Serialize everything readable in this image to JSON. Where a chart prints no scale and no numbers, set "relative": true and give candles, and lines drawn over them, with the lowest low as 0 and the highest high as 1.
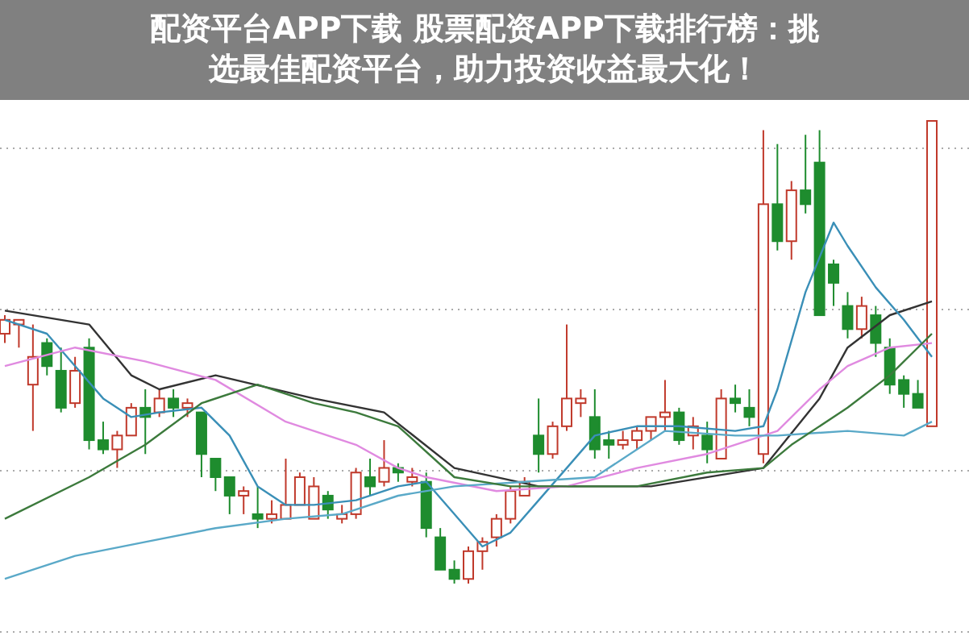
{
  "chart_data": {
    "type": "candlestick",
    "title": "配资平台APP下载 股票配资APP下载排行榜：挑选最佳配资平台，助力投资收益最大化！",
    "relative": true,
    "grid": "y",
    "categories": [
      null,
      null,
      null,
      null,
      null,
      null,
      null,
      null,
      null,
      null,
      null,
      null,
      null,
      null,
      null,
      null,
      null,
      null,
      null,
      null,
      null,
      null,
      null,
      null,
      null,
      null,
      null,
      null,
      null,
      null,
      null,
      null,
      null,
      null,
      null,
      null,
      null,
      null,
      null,
      null,
      null,
      null,
      null,
      null,
      null,
      null,
      null,
      null,
      null,
      null,
      null,
      null,
      null,
      null,
      null,
      null,
      null,
      null,
      null,
      null,
      null,
      null,
      null,
      null,
      null,
      null,
      null
    ],
    "ohlc": [
      [
        0.54,
        0.58,
        0.52,
        0.57
      ],
      [
        0.56,
        0.57,
        0.51,
        0.57
      ],
      [
        0.43,
        0.56,
        0.33,
        0.49
      ],
      [
        0.52,
        0.53,
        0.45,
        0.47
      ],
      [
        0.46,
        0.51,
        0.37,
        0.38
      ],
      [
        0.39,
        0.49,
        0.38,
        0.46
      ],
      [
        0.51,
        0.53,
        0.29,
        0.31
      ],
      [
        0.31,
        0.35,
        0.28,
        0.29
      ],
      [
        0.29,
        0.33,
        0.25,
        0.32
      ],
      [
        0.32,
        0.39,
        0.32,
        0.38
      ],
      [
        0.38,
        0.42,
        0.28,
        0.36
      ],
      [
        0.37,
        0.42,
        0.36,
        0.4
      ],
      [
        0.4,
        0.42,
        0.36,
        0.38
      ],
      [
        0.38,
        0.4,
        0.36,
        0.39
      ],
      [
        0.37,
        0.37,
        0.23,
        0.28
      ],
      [
        0.27,
        0.27,
        0.2,
        0.23
      ],
      [
        0.23,
        0.23,
        0.15,
        0.19
      ],
      [
        0.19,
        0.21,
        0.15,
        0.2
      ],
      [
        0.15,
        0.21,
        0.12,
        0.14
      ],
      [
        0.14,
        0.18,
        0.13,
        0.15
      ],
      [
        0.14,
        0.27,
        0.14,
        0.17
      ],
      [
        0.17,
        0.24,
        0.17,
        0.23
      ],
      [
        0.14,
        0.23,
        0.14,
        0.21
      ],
      [
        0.19,
        0.2,
        0.14,
        0.16
      ],
      [
        0.14,
        0.17,
        0.13,
        0.15
      ],
      [
        0.15,
        0.25,
        0.14,
        0.24
      ],
      [
        0.23,
        0.27,
        0.19,
        0.21
      ],
      [
        0.22,
        0.31,
        0.21,
        0.25
      ],
      [
        0.25,
        0.26,
        0.22,
        0.24
      ],
      [
        0.22,
        0.25,
        0.21,
        0.23
      ],
      [
        0.22,
        0.24,
        0.1,
        0.12
      ],
      [
        0.1,
        0.12,
        0.03,
        0.03
      ],
      [
        0.03,
        0.05,
        0,
        0.01
      ],
      [
        0.01,
        0.08,
        0,
        0.07
      ],
      [
        0.07,
        0.1,
        0.03,
        0.09
      ],
      [
        0.1,
        0.15,
        0.08,
        0.14
      ],
      [
        0.14,
        0.21,
        0.13,
        0.2
      ],
      [
        0.19,
        0.23,
        0.19,
        0.22
      ],
      [
        0.32,
        0.4,
        0.24,
        0.28
      ],
      [
        0.28,
        0.35,
        0.27,
        0.34
      ],
      [
        0.34,
        0.56,
        0.33,
        0.4
      ],
      [
        0.39,
        0.42,
        0.36,
        0.4
      ],
      [
        0.36,
        0.42,
        0.27,
        0.29
      ],
      [
        0.31,
        0.33,
        0.27,
        0.3
      ],
      [
        0.3,
        0.33,
        0.29,
        0.31
      ],
      [
        0.31,
        0.34,
        0.29,
        0.33
      ],
      [
        0.33,
        0.36,
        0.31,
        0.36
      ],
      [
        0.36,
        0.44,
        0.33,
        0.37
      ],
      [
        0.37,
        0.38,
        0.3,
        0.31
      ],
      [
        0.32,
        0.36,
        0.29,
        0.34
      ],
      [
        0.32,
        0.35,
        0.26,
        0.29
      ],
      [
        0.27,
        0.42,
        0.27,
        0.4
      ],
      [
        0.4,
        0.43,
        0.37,
        0.39
      ],
      [
        0.38,
        0.42,
        0.34,
        0.36
      ],
      [
        0.28,
        0.98,
        0.26,
        0.82
      ],
      [
        0.82,
        0.95,
        0.72,
        0.74
      ],
      [
        0.74,
        0.87,
        0.7,
        0.85
      ],
      [
        0.85,
        0.97,
        0.8,
        0.82
      ],
      [
        0.91,
        0.98,
        0.58,
        0.58
      ],
      [
        0.69,
        0.7,
        0.6,
        0.65
      ],
      [
        0.6,
        0.63,
        0.53,
        0.55
      ],
      [
        0.55,
        0.62,
        0.53,
        0.6
      ],
      [
        0.58,
        0.6,
        0.49,
        0.52
      ],
      [
        0.51,
        0.53,
        0.41,
        0.43
      ],
      [
        0.44,
        0.45,
        0.38,
        0.41
      ],
      [
        0.41,
        0.44,
        0.38,
        0.38
      ],
      [
        0.34,
        1,
        0.34,
        1
      ]
    ],
    "series": [
      {
        "type": "line",
        "color": "#333333",
        "values": [
          0.59,
          null,
          null,
          null,
          null,
          null,
          0.56,
          null,
          null,
          0.45,
          null,
          0.42,
          null,
          null,
          null,
          0.45,
          null,
          null,
          null,
          null,
          null,
          null,
          0.4,
          null,
          null,
          null,
          null,
          0.37,
          null,
          null,
          null,
          null,
          0.25,
          null,
          null,
          null,
          null,
          null,
          0.21,
          null,
          null,
          null,
          null,
          null,
          null,
          null,
          0.21,
          null,
          null,
          null,
          null,
          null,
          null,
          null,
          0.25,
          null,
          null,
          null,
          0.4,
          null,
          0.51,
          null,
          null,
          0.58,
          null,
          null,
          0.61
        ]
      },
      {
        "type": "line",
        "color": "#3a8fb7",
        "values": [
          0.57,
          null,
          null,
          0.54,
          null,
          0.47,
          null,
          0.4,
          null,
          0.36,
          null,
          0.37,
          null,
          null,
          0.38,
          null,
          0.32,
          null,
          0.21,
          null,
          0.17,
          null,
          0.17,
          null,
          null,
          0.18,
          null,
          null,
          0.21,
          null,
          0.22,
          null,
          0.15,
          null,
          0.08,
          null,
          0.11,
          null,
          0.18,
          null,
          0.25,
          null,
          0.32,
          null,
          null,
          0.34,
          null,
          null,
          0.34,
          null,
          null,
          null,
          0.33,
          null,
          0.34,
          0.42,
          null,
          0.63,
          null,
          0.78,
          0.73,
          null,
          0.64,
          null,
          0.57,
          null,
          0.49
        ]
      },
      {
        "type": "line",
        "color": "#e08ae0",
        "values": [
          0.47,
          null,
          null,
          null,
          null,
          0.51,
          null,
          null,
          null,
          null,
          0.48,
          null,
          null,
          null,
          null,
          0.44,
          null,
          null,
          null,
          null,
          0.35,
          null,
          null,
          null,
          null,
          0.3,
          null,
          null,
          0.25,
          null,
          0.23,
          null,
          null,
          null,
          null,
          0.2,
          null,
          null,
          null,
          null,
          0.21,
          null,
          null,
          null,
          null,
          0.25,
          null,
          null,
          null,
          null,
          0.28,
          null,
          null,
          null,
          0.32,
          0.33,
          null,
          null,
          0.42,
          null,
          0.47,
          null,
          null,
          0.51,
          null,
          null,
          0.52
        ]
      },
      {
        "type": "line",
        "color": "#5aa9c8",
        "values": [
          0.01,
          null,
          null,
          null,
          null,
          0.06,
          null,
          null,
          null,
          null,
          0.09,
          null,
          null,
          null,
          null,
          0.12,
          null,
          null,
          null,
          null,
          0.14,
          null,
          null,
          null,
          0.15,
          null,
          null,
          null,
          0.19,
          null,
          null,
          null,
          0.21,
          null,
          null,
          null,
          null,
          0.22,
          null,
          null,
          null,
          null,
          0.23,
          null,
          null,
          null,
          null,
          0.33,
          null,
          null,
          null,
          null,
          0.32,
          null,
          null,
          0.32,
          null,
          null,
          null,
          null,
          0.33,
          null,
          null,
          null,
          0.32,
          null,
          0.35
        ]
      },
      {
        "type": "line",
        "color": "#3c7a3c",
        "values": [
          0.14,
          null,
          null,
          null,
          null,
          null,
          0.23,
          null,
          null,
          null,
          0.3,
          null,
          null,
          null,
          0.39,
          null,
          null,
          null,
          0.43,
          null,
          null,
          null,
          0.39,
          null,
          null,
          0.37,
          null,
          null,
          0.34,
          null,
          null,
          null,
          0.23,
          null,
          null,
          null,
          0.21,
          null,
          null,
          null,
          0.21,
          null,
          null,
          null,
          null,
          0.21,
          null,
          null,
          null,
          null,
          0.24,
          null,
          null,
          null,
          0.25,
          null,
          0.3,
          null,
          null,
          null,
          0.38,
          null,
          null,
          0.45,
          null,
          null,
          0.54
        ]
      }
    ]
  }
}
